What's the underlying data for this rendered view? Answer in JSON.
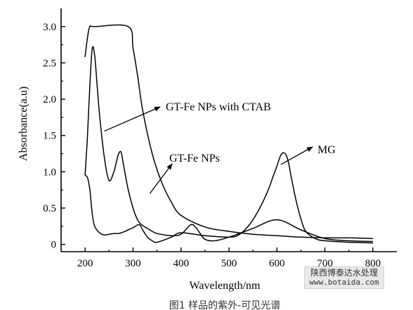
{
  "chart_data": {
    "type": "line",
    "xlabel": "Wavelength/nm",
    "ylabel": "Absorbance(a.u)",
    "xlim": [
      150,
      850
    ],
    "ylim": [
      -0.1,
      3.25
    ],
    "x_ticks": [
      "200",
      "300",
      "400",
      "500",
      "600",
      "700",
      "800"
    ],
    "y_ticks": [
      "0",
      "0.5",
      "1.0",
      "1.5",
      "2.0",
      "2.5",
      "3.0"
    ],
    "grid": false,
    "series": [
      {
        "name": "GT-Fe NPs with CTAB",
        "x": [
          200,
          205,
          210,
          220,
          290,
          300,
          310,
          320,
          340,
          360,
          380,
          400,
          450,
          500,
          550,
          600,
          650,
          700,
          750,
          800
        ],
        "y": [
          2.58,
          2.85,
          3.0,
          3.0,
          3.0,
          2.7,
          2.3,
          1.85,
          1.25,
          0.85,
          0.58,
          0.4,
          0.24,
          0.18,
          0.14,
          0.12,
          0.1,
          0.09,
          0.09,
          0.08
        ]
      },
      {
        "name": "GT-Fe NPs",
        "x": [
          200,
          205,
          210,
          215,
          220,
          225,
          230,
          240,
          250,
          260,
          265,
          270,
          275,
          280,
          290,
          300,
          310,
          320,
          330,
          340,
          350,
          380,
          400,
          420,
          430,
          440,
          450,
          470,
          500,
          550,
          600,
          650,
          700,
          750,
          800
        ],
        "y": [
          0.95,
          1.5,
          2.2,
          2.7,
          2.6,
          2.2,
          1.8,
          1.2,
          0.88,
          1.0,
          1.13,
          1.25,
          1.27,
          1.1,
          0.75,
          0.5,
          0.33,
          0.26,
          0.22,
          0.18,
          0.15,
          0.12,
          0.14,
          0.27,
          0.24,
          0.15,
          0.07,
          0.05,
          0.1,
          0.22,
          0.34,
          0.2,
          0.08,
          0.05,
          0.04
        ]
      },
      {
        "name": "MG",
        "x": [
          200,
          205,
          210,
          215,
          220,
          230,
          240,
          250,
          260,
          270,
          280,
          290,
          300,
          310,
          315,
          320,
          330,
          340,
          350,
          380,
          400,
          450,
          500,
          520,
          540,
          560,
          580,
          590,
          600,
          605,
          610,
          615,
          620,
          625,
          630,
          640,
          650,
          660,
          680,
          700,
          750,
          800
        ],
        "y": [
          0.95,
          0.92,
          0.75,
          0.42,
          0.25,
          0.16,
          0.13,
          0.14,
          0.15,
          0.15,
          0.17,
          0.2,
          0.23,
          0.27,
          0.26,
          0.2,
          0.1,
          0.05,
          0.03,
          0.1,
          0.16,
          0.12,
          0.1,
          0.13,
          0.25,
          0.45,
          0.72,
          0.9,
          1.08,
          1.18,
          1.25,
          1.26,
          1.22,
          1.1,
          0.92,
          0.6,
          0.35,
          0.18,
          0.08,
          0.05,
          0.03,
          0.02
        ]
      }
    ],
    "annotations": [
      {
        "text": "GT-Fe NPs with CTAB",
        "target_x": 240,
        "target_y": 1.56
      },
      {
        "text": "GT-Fe NPs",
        "target_x": 335,
        "target_y": 0.7
      },
      {
        "text": "MG",
        "target_x": 608,
        "target_y": 1.1
      }
    ]
  },
  "watermark": {
    "line1": "陕西博泰达水处理",
    "line2": "www.botaida.com"
  },
  "caption": "图1 样品的紫外-可见光谱"
}
